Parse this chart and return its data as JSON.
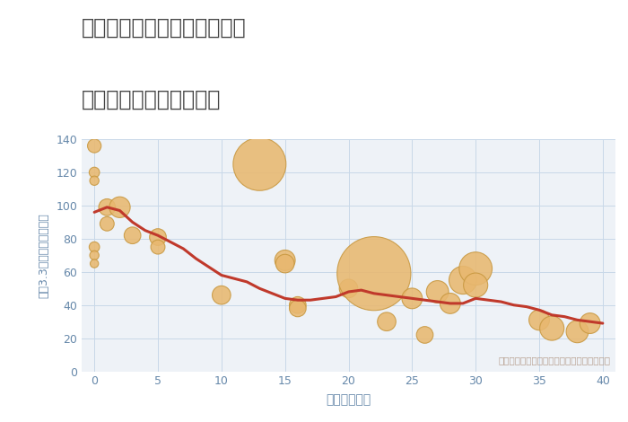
{
  "title_line1": "兵庫県三田市つつじが丘南の",
  "title_line2": "築年数別中古戸建て価格",
  "xlabel": "築年数（年）",
  "ylabel": "坪（3.3㎡）単価（万円）",
  "annotation": "円の大きさは、取引のあった物件面積を示す",
  "bg_color": "#ffffff",
  "plot_bg_color": "#eef2f7",
  "grid_color": "#c8d8e8",
  "title_color": "#444444",
  "axis_label_color": "#6688aa",
  "tick_color": "#6688aa",
  "annotation_color": "#b8a090",
  "line_color": "#c0392b",
  "bubble_color": "#e8b870",
  "bubble_edge_color": "#c89840",
  "xlim": [
    -1,
    41
  ],
  "ylim": [
    0,
    140
  ],
  "xticks": [
    0,
    5,
    10,
    15,
    20,
    25,
    30,
    35,
    40
  ],
  "yticks": [
    0,
    20,
    40,
    60,
    80,
    100,
    120,
    140
  ],
  "scatter_x": [
    0,
    0,
    0,
    0,
    0,
    0,
    1,
    1,
    2,
    3,
    5,
    5,
    10,
    13,
    15,
    15,
    16,
    16,
    20,
    22,
    23,
    25,
    26,
    27,
    28,
    29,
    30,
    30,
    35,
    36,
    38,
    39
  ],
  "scatter_y": [
    136,
    120,
    115,
    75,
    70,
    65,
    99,
    89,
    99,
    82,
    81,
    75,
    46,
    125,
    67,
    65,
    40,
    38,
    50,
    59,
    30,
    44,
    22,
    48,
    41,
    55,
    62,
    52,
    31,
    26,
    24,
    29
  ],
  "scatter_s": [
    120,
    70,
    55,
    70,
    55,
    45,
    180,
    130,
    280,
    180,
    180,
    130,
    220,
    1800,
    270,
    220,
    180,
    180,
    220,
    3500,
    220,
    270,
    180,
    320,
    270,
    500,
    700,
    380,
    270,
    380,
    320,
    270
  ],
  "line_x": [
    0,
    1,
    2,
    3,
    4,
    5,
    6,
    7,
    8,
    9,
    10,
    11,
    12,
    13,
    14,
    15,
    16,
    17,
    18,
    19,
    20,
    21,
    22,
    23,
    24,
    25,
    26,
    27,
    28,
    29,
    30,
    31,
    32,
    33,
    34,
    35,
    36,
    37,
    38,
    39,
    40
  ],
  "line_y": [
    96,
    99,
    97,
    90,
    85,
    82,
    78,
    74,
    68,
    63,
    58,
    56,
    54,
    50,
    47,
    44,
    43,
    43,
    44,
    45,
    48,
    49,
    47,
    46,
    45,
    44,
    43,
    42,
    41,
    41,
    44,
    43,
    42,
    40,
    39,
    37,
    34,
    33,
    31,
    30,
    29
  ]
}
